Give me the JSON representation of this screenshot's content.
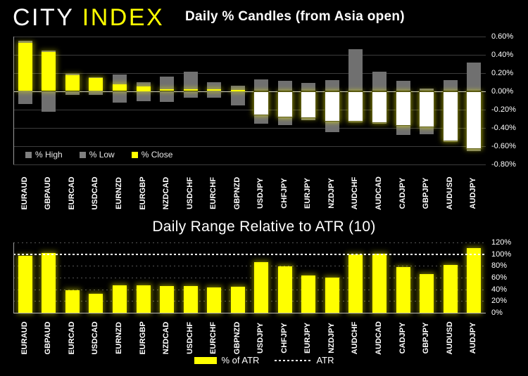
{
  "logo": {
    "city": "CITY",
    "index": "INDEX"
  },
  "colors": {
    "background": "#000000",
    "yellow": "#ffff00",
    "gray_bar": "#707070",
    "down_candle_fill": "#ffffff",
    "text": "#ffffff"
  },
  "chart_data": [
    {
      "type": "bar",
      "subtype": "high-low-close-candles",
      "title": "Daily % Candles (from Asia open)",
      "categories": [
        "EURAUD",
        "GBPAUD",
        "EURCAD",
        "USDCAD",
        "EURNZD",
        "EURGBP",
        "NZDCAD",
        "USDCHF",
        "EURCHF",
        "GBPNZD",
        "USDJPY",
        "CHFJPY",
        "EURJPY",
        "NZDJPY",
        "AUDCHF",
        "AUDCAD",
        "CADJPY",
        "GBPJPY",
        "AUDUSD",
        "AUDJPY"
      ],
      "series": [
        {
          "name": "% High",
          "values": [
            0.55,
            0.44,
            0.19,
            0.15,
            0.18,
            0.1,
            0.16,
            0.21,
            0.1,
            0.06,
            0.13,
            0.11,
            0.09,
            0.12,
            0.46,
            0.21,
            0.11,
            0.03,
            0.12,
            0.31
          ]
        },
        {
          "name": "% Low",
          "values": [
            -0.14,
            -0.23,
            -0.04,
            -0.04,
            -0.13,
            -0.11,
            -0.12,
            -0.07,
            -0.07,
            -0.16,
            -0.36,
            -0.37,
            -0.32,
            -0.45,
            -0.34,
            -0.36,
            -0.48,
            -0.47,
            -0.56,
            -0.66
          ]
        },
        {
          "name": "% Close",
          "values": [
            0.53,
            0.43,
            0.17,
            0.14,
            0.07,
            0.05,
            0.02,
            0.02,
            0.02,
            0.01,
            -0.26,
            -0.28,
            -0.29,
            -0.33,
            -0.33,
            -0.34,
            -0.37,
            -0.39,
            -0.54,
            -0.63
          ]
        }
      ],
      "ylim": [
        -0.8,
        0.6
      ],
      "ytick_values": [
        0.6,
        0.4,
        0.2,
        0,
        -0.2,
        -0.4,
        -0.6,
        -0.8
      ],
      "ytick_labels": [
        "0.60%",
        "0.40%",
        "0.20%",
        "0.00%",
        "-0.20%",
        "-0.40%",
        "-0.60%",
        "-0.80%"
      ],
      "axis_labels_side": "right",
      "grid": true
    },
    {
      "type": "bar",
      "title": "Daily Range Relative to ATR (10)",
      "categories": [
        "EURAUD",
        "GBPAUD",
        "EURCAD",
        "USDCAD",
        "EURNZD",
        "EURGBP",
        "NZDCAD",
        "USDCHF",
        "EURCHF",
        "GBPNZD",
        "USDJPY",
        "CHFJPY",
        "EURJPY",
        "NZDJPY",
        "AUDCHF",
        "AUDCAD",
        "CADJPY",
        "GBPJPY",
        "AUDUSD",
        "AUDJPY"
      ],
      "values": [
        97,
        102,
        38,
        32,
        47,
        47,
        46,
        45,
        43,
        44,
        86,
        79,
        64,
        60,
        99,
        101,
        78,
        66,
        82,
        110
      ],
      "atr_reference_line": 100,
      "ylim": [
        0,
        120
      ],
      "ytick_values": [
        120,
        100,
        80,
        60,
        40,
        20,
        0
      ],
      "ytick_labels": [
        "120%",
        "100%",
        "80%",
        "60%",
        "40%",
        "20%",
        "0%"
      ],
      "axis_labels_side": "right",
      "grid": true,
      "legend": {
        "percent_label": "% of ATR",
        "atr_label": "ATR"
      }
    }
  ]
}
